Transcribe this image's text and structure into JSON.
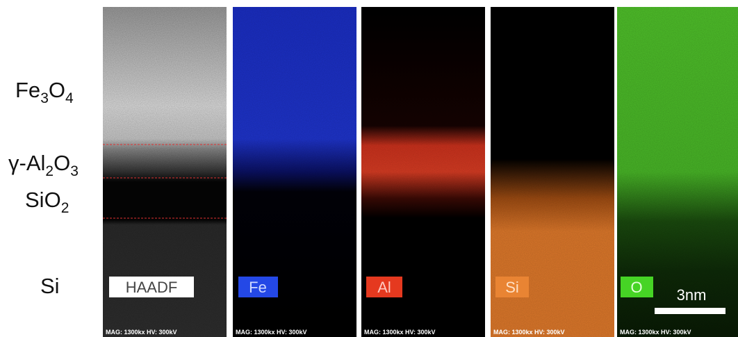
{
  "layer_labels": [
    [
      "Fe",
      "3",
      "O",
      "4"
    ],
    [
      "γ-Al",
      "2",
      "O",
      "3"
    ],
    [
      "SiO",
      "2"
    ],
    [
      "Si"
    ]
  ],
  "panels": [
    {
      "tag": "HAADF",
      "footer": "MAG: 1300kx HV: 300kV"
    },
    {
      "tag": "Fe",
      "footer": "MAG: 1300kx HV: 300kV"
    },
    {
      "tag": "Al",
      "footer": "MAG: 1300kx HV: 300kV"
    },
    {
      "tag": "Si",
      "footer": "MAG: 1300kx HV: 300kV"
    },
    {
      "tag": "O",
      "footer": "MAG: 1300kx HV: 300kV"
    }
  ],
  "scale_bar": "3nm"
}
